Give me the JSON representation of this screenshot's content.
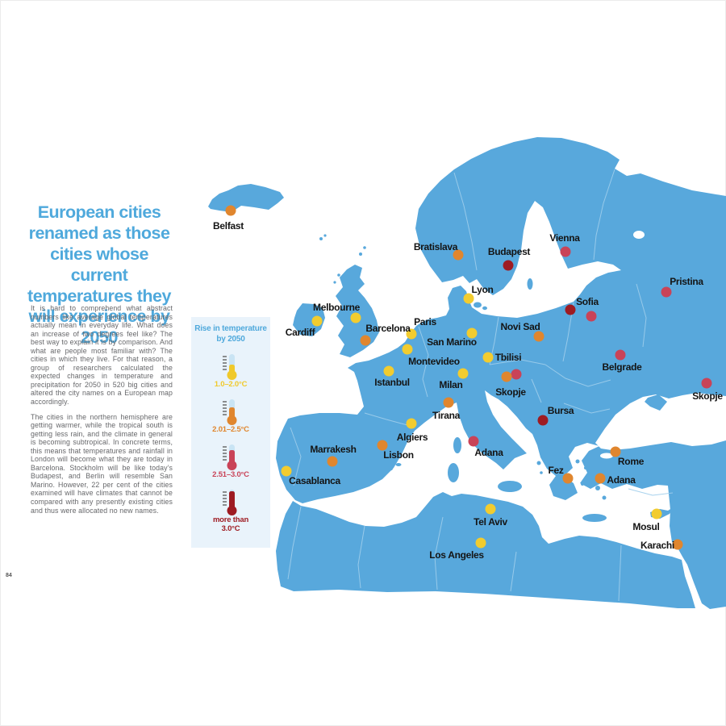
{
  "page": {
    "number": "84"
  },
  "article": {
    "accent_color": "#4FA9DC",
    "title": "European cities renamed as those cities whose current temperatures they will experience by 2050",
    "paragraphs": [
      "It is hard to comprehend what abstract numbers like average global temperatures actually mean in everyday life. What does an increase of two degrees feel like? The best way to explain it is by comparison. And what are people most familiar with? The cities in which they live. For that reason, a group of researchers calculated the expected changes in temperature and precipitation for 2050 in 520 big cities and altered the city names on a European map accordingly.",
      "The cities in the northern hemisphere are getting warmer, while the tropical south is getting less rain, and the climate in general is becoming subtropical. In concrete terms, this means that temperatures and rainfall in London will become what they are today in Barcelona. Stockholm will be like today’s Budapest, and Berlin will resemble San Marino. However, 22 per cent of the cities examined will have climates that cannot be compared with any presently existing cities and thus were allocated no new names."
    ]
  },
  "legend": {
    "title_line1": "Rise in temperature",
    "title_line2": "by 2050",
    "thermometer_empty_color": "#C9E4F4",
    "tick_color": "#6b6b6b",
    "items": [
      {
        "label": "1.0–2.0°C",
        "color": "#F0C92B",
        "fill": 0.42
      },
      {
        "label": "2.01–2.5°C",
        "color": "#E0862E",
        "fill": 0.58
      },
      {
        "label": "2.51–3.0°C",
        "color": "#C94358",
        "fill": 0.72
      },
      {
        "label": "more than 3.0°C",
        "color": "#9E1B22",
        "fill": 0.96
      }
    ]
  },
  "map": {
    "land_color": "#58A8DC",
    "sea_color": "#FFFFFF",
    "border_color": "#9FCDEB",
    "label_color": "#141414",
    "category_colors": {
      "y": "#F2CC2F",
      "o": "#E0862E",
      "r": "#C94358",
      "d": "#9E1B22"
    },
    "cities": [
      {
        "name": "Belfast",
        "cat": "o",
        "dot": [
          286,
          261
        ],
        "label": [
          283,
          280
        ]
      },
      {
        "name": "Melbourne",
        "cat": "y",
        "dot": [
          441,
          394
        ],
        "label": [
          417,
          381
        ]
      },
      {
        "name": "Cardiff",
        "cat": "y",
        "dot": [
          393,
          398
        ],
        "label": [
          372,
          412
        ]
      },
      {
        "name": "Bratislava",
        "cat": "o",
        "dot": [
          568,
          316
        ],
        "label": [
          540,
          306
        ]
      },
      {
        "name": "Budapest",
        "cat": "d",
        "dot": [
          630,
          329
        ],
        "label": [
          631,
          312
        ]
      },
      {
        "name": "Vienna",
        "cat": "r",
        "dot": [
          701,
          312
        ],
        "label": [
          700,
          295
        ]
      },
      {
        "name": "Lyon",
        "cat": "y",
        "dot": [
          581,
          370
        ],
        "label": [
          598,
          359
        ]
      },
      {
        "name": "Paris",
        "cat": "y",
        "dot": [
          510,
          414
        ],
        "label": [
          527,
          399
        ]
      },
      {
        "name": "Barcelona",
        "cat": "o",
        "dot": [
          453,
          422
        ],
        "label": [
          481,
          407
        ]
      },
      {
        "name": "San Marino",
        "cat": "y",
        "dot": [
          585,
          413
        ],
        "label": [
          560,
          424
        ]
      },
      {
        "name": "Montevideo",
        "cat": "y",
        "dot": [
          505,
          433
        ],
        "label": [
          538,
          448
        ]
      },
      {
        "name": "Novi Sad",
        "cat": "o",
        "dot": [
          668,
          417
        ],
        "label": [
          645,
          405
        ]
      },
      {
        "name": "Tbilisi",
        "cat": "y",
        "dot": [
          605,
          443
        ],
        "label": [
          630,
          443
        ]
      },
      {
        "name": "Sofia",
        "cat": "d",
        "dot": [
          707,
          384
        ],
        "label": [
          728,
          374
        ]
      },
      {
        "name": "",
        "cat": "r",
        "dot": [
          733,
          392
        ]
      },
      {
        "name": "Pristina",
        "cat": "r",
        "dot": [
          826,
          362
        ],
        "label": [
          851,
          349
        ]
      },
      {
        "name": "Belgrade",
        "cat": "r",
        "dot": [
          769,
          440
        ],
        "label": [
          771,
          455
        ]
      },
      {
        "name": "Skopje",
        "cat": "r",
        "dot": [
          876,
          475
        ],
        "label": [
          877,
          491
        ]
      },
      {
        "name": "Istanbul",
        "cat": "y",
        "dot": [
          482,
          460
        ],
        "label": [
          486,
          474
        ]
      },
      {
        "name": "Milan",
        "cat": "y",
        "dot": [
          574,
          463
        ],
        "label": [
          559,
          477
        ]
      },
      {
        "name": "",
        "cat": "r",
        "dot": [
          640,
          464
        ]
      },
      {
        "name": "Skopje",
        "cat": "o",
        "dot": [
          628,
          467
        ],
        "label": [
          633,
          486
        ]
      },
      {
        "name": "Tirana",
        "cat": "o",
        "dot": [
          556,
          499
        ],
        "label": [
          553,
          515
        ]
      },
      {
        "name": "Bursa",
        "cat": "d",
        "dot": [
          673,
          521
        ],
        "label": [
          695,
          509
        ]
      },
      {
        "name": "Algiers",
        "cat": "y",
        "dot": [
          510,
          525
        ],
        "label": [
          511,
          542
        ]
      },
      {
        "name": "Adana",
        "cat": "r",
        "dot": [
          587,
          547
        ],
        "label": [
          606,
          561
        ]
      },
      {
        "name": "Rome",
        "cat": "o",
        "dot": [
          763,
          560
        ],
        "label": [
          782,
          572
        ]
      },
      {
        "name": "Fez",
        "cat": "o",
        "dot": [
          704,
          593
        ],
        "label": [
          689,
          583
        ]
      },
      {
        "name": "Adana",
        "cat": "o",
        "dot": [
          744,
          593
        ],
        "label": [
          770,
          595
        ]
      },
      {
        "name": "Marrakesh",
        "cat": "o",
        "dot": [
          412,
          572
        ],
        "label": [
          413,
          557
        ]
      },
      {
        "name": "Lisbon",
        "cat": "o",
        "dot": [
          474,
          552
        ],
        "label": [
          494,
          564
        ]
      },
      {
        "name": "Casablanca",
        "cat": "y",
        "dot": [
          355,
          584
        ],
        "label": [
          390,
          596
        ]
      },
      {
        "name": "Tel Aviv",
        "cat": "y",
        "dot": [
          608,
          631
        ],
        "label": [
          608,
          647
        ]
      },
      {
        "name": "Los Angeles",
        "cat": "y",
        "dot": [
          596,
          673
        ],
        "label": [
          566,
          688
        ]
      },
      {
        "name": "Mosul",
        "cat": "y",
        "dot": [
          814,
          637
        ],
        "label": [
          801,
          653
        ]
      },
      {
        "name": "Karachi",
        "cat": "o",
        "dot": [
          840,
          675
        ],
        "label": [
          815,
          676
        ]
      }
    ]
  }
}
